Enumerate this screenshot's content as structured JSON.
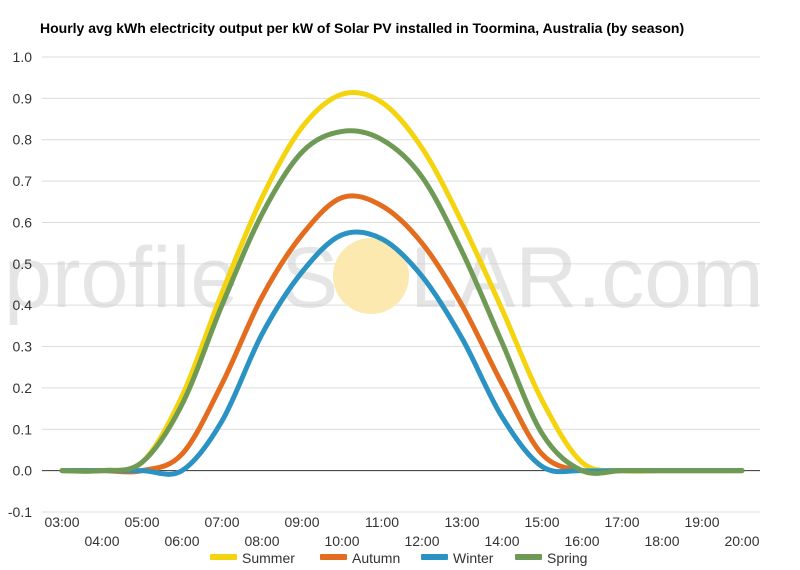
{
  "chart_data": {
    "type": "line",
    "title": "Hourly avg kWh electricity output per kW of Solar PV installed in Toormina, Australia (by season)",
    "xlabel": "",
    "ylabel": "",
    "ylim": [
      -0.1,
      1.0
    ],
    "yticks": [
      "-0.1",
      "0.0",
      "0.1",
      "0.2",
      "0.3",
      "0.4",
      "0.5",
      "0.6",
      "0.7",
      "0.8",
      "0.9",
      "1.0"
    ],
    "x": [
      "03:00",
      "04:00",
      "05:00",
      "06:00",
      "07:00",
      "08:00",
      "09:00",
      "10:00",
      "11:00",
      "12:00",
      "13:00",
      "14:00",
      "15:00",
      "16:00",
      "17:00",
      "18:00",
      "19:00",
      "20:00"
    ],
    "grid": true,
    "legend_position": "bottom",
    "series": [
      {
        "name": "Summer",
        "color": "#f4d30f",
        "values": [
          0.0,
          0.0,
          0.02,
          0.18,
          0.43,
          0.66,
          0.83,
          0.91,
          0.89,
          0.78,
          0.6,
          0.39,
          0.17,
          0.02,
          0.0,
          0.0,
          0.0,
          0.0
        ]
      },
      {
        "name": "Autumn",
        "color": "#e36c1e",
        "values": [
          0.0,
          0.0,
          0.0,
          0.04,
          0.21,
          0.42,
          0.57,
          0.66,
          0.64,
          0.55,
          0.4,
          0.21,
          0.04,
          0.0,
          0.0,
          0.0,
          0.0,
          0.0
        ]
      },
      {
        "name": "Winter",
        "color": "#2a93c3",
        "values": [
          0.0,
          0.0,
          0.0,
          0.0,
          0.12,
          0.33,
          0.48,
          0.57,
          0.56,
          0.47,
          0.32,
          0.13,
          0.01,
          0.0,
          0.0,
          0.0,
          0.0,
          0.0
        ]
      },
      {
        "name": "Spring",
        "color": "#6f9a55",
        "values": [
          0.0,
          0.0,
          0.02,
          0.16,
          0.4,
          0.62,
          0.77,
          0.82,
          0.8,
          0.71,
          0.53,
          0.31,
          0.09,
          0.0,
          0.0,
          0.0,
          0.0,
          0.0
        ]
      }
    ]
  },
  "watermark": {
    "part1": "profile",
    "part2": "S",
    "part3": "LAR.com",
    "sun_color": "#fbe9b0"
  }
}
